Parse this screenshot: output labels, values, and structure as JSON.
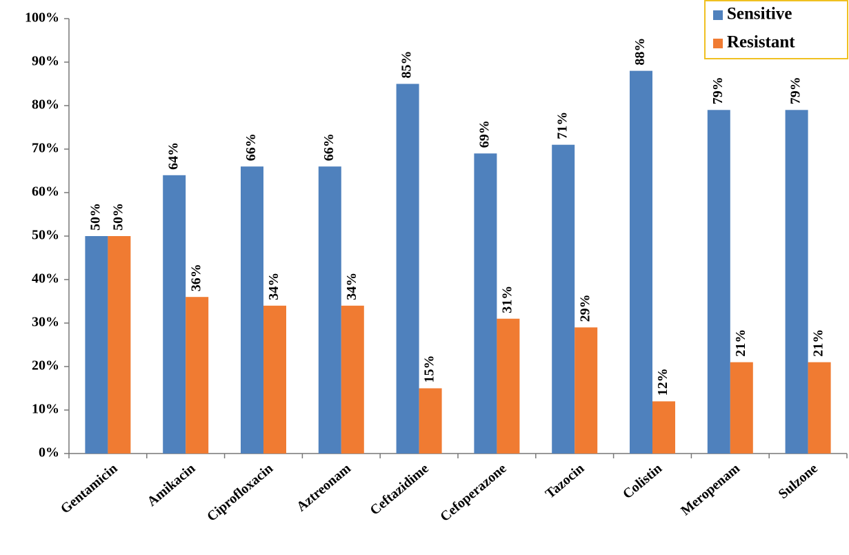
{
  "chart_data": {
    "type": "bar",
    "categories": [
      "Gentamicin",
      "Amikacin",
      "Ciprofloxacin",
      "Aztreonam",
      "Ceftazidime",
      "Cefoperazone",
      "Tazocin",
      "Colistin",
      "Meropenam",
      "Sulzone"
    ],
    "series": [
      {
        "name": "Sensitive",
        "color": "#4f81bd",
        "values": [
          50,
          64,
          66,
          66,
          85,
          69,
          71,
          88,
          79,
          79
        ],
        "value_labels": [
          "50%",
          "64%",
          "66%",
          "66%",
          "85%",
          "69%",
          "71%",
          "88%",
          "79%",
          "79%"
        ]
      },
      {
        "name": "Resistant",
        "color": "#f07b32",
        "values": [
          50,
          36,
          34,
          34,
          15,
          31,
          29,
          12,
          21,
          21
        ],
        "value_labels": [
          "50%",
          "36%",
          "34%",
          "34%",
          "15%",
          "31%",
          "29%",
          "12%",
          "21%",
          "21%"
        ]
      }
    ],
    "ylim": [
      0,
      100
    ],
    "yticks": [
      {
        "value": 0,
        "label": "0%"
      },
      {
        "value": 10,
        "label": "10%"
      },
      {
        "value": 20,
        "label": "20%"
      },
      {
        "value": 30,
        "label": "30%"
      },
      {
        "value": 40,
        "label": "40%"
      },
      {
        "value": 50,
        "label": "50%"
      },
      {
        "value": 60,
        "label": "60%"
      },
      {
        "value": 70,
        "label": "70%"
      },
      {
        "value": 80,
        "label": "80%"
      },
      {
        "value": 90,
        "label": "90%"
      },
      {
        "value": 100,
        "label": "100%"
      }
    ],
    "grid": false,
    "legend": "top-right"
  }
}
